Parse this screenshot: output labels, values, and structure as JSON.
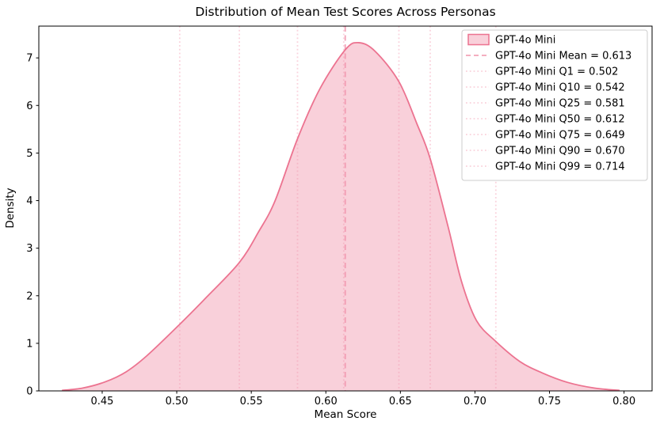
{
  "chart_data": {
    "type": "area",
    "title": "Distribution of Mean Test Scores Across Personas",
    "xlabel": "Mean Score",
    "ylabel": "Density",
    "xlim": [
      0.4075,
      0.8188
    ],
    "ylim": [
      0,
      7.668
    ],
    "grid": false,
    "legend_position": "upper right",
    "xticks": {
      "values": [
        0.45,
        0.5,
        0.55,
        0.6,
        0.65,
        0.7,
        0.75,
        0.8
      ],
      "labels": [
        "0.45",
        "0.50",
        "0.55",
        "0.60",
        "0.65",
        "0.70",
        "0.75",
        "0.80"
      ]
    },
    "yticks": {
      "values": [
        0,
        1,
        2,
        3,
        4,
        5,
        6,
        7
      ],
      "labels": [
        "0",
        "1",
        "2",
        "3",
        "4",
        "5",
        "6",
        "7"
      ]
    },
    "series": [
      {
        "name": "GPT-4o Mini",
        "type": "kde",
        "points": [
          [
            0.423,
            0.01
          ],
          [
            0.437,
            0.06
          ],
          [
            0.452,
            0.19
          ],
          [
            0.466,
            0.4
          ],
          [
            0.48,
            0.74
          ],
          [
            0.502,
            1.4
          ],
          [
            0.52,
            1.97
          ],
          [
            0.542,
            2.7
          ],
          [
            0.555,
            3.35
          ],
          [
            0.566,
            4.0
          ],
          [
            0.581,
            5.3
          ],
          [
            0.596,
            6.35
          ],
          [
            0.613,
            7.17
          ],
          [
            0.622,
            7.32
          ],
          [
            0.633,
            7.14
          ],
          [
            0.649,
            6.5
          ],
          [
            0.661,
            5.62
          ],
          [
            0.67,
            4.88
          ],
          [
            0.682,
            3.45
          ],
          [
            0.691,
            2.3
          ],
          [
            0.701,
            1.48
          ],
          [
            0.714,
            1.04
          ],
          [
            0.73,
            0.62
          ],
          [
            0.745,
            0.38
          ],
          [
            0.762,
            0.18
          ],
          [
            0.78,
            0.06
          ],
          [
            0.797,
            0.01
          ]
        ]
      }
    ],
    "vlines": [
      {
        "key": "mean",
        "label": "GPT-4o Mini Mean = 0.613",
        "x": 0.613,
        "style": "dashed"
      },
      {
        "key": "q1",
        "label": "GPT-4o Mini Q1 = 0.502",
        "x": 0.502,
        "style": "dotted"
      },
      {
        "key": "q10",
        "label": "GPT-4o Mini Q10 = 0.542",
        "x": 0.542,
        "style": "dotted"
      },
      {
        "key": "q25",
        "label": "GPT-4o Mini Q25 = 0.581",
        "x": 0.581,
        "style": "dotted"
      },
      {
        "key": "q50",
        "label": "GPT-4o Mini Q50 = 0.612",
        "x": 0.612,
        "style": "dotted"
      },
      {
        "key": "q75",
        "label": "GPT-4o Mini Q75 = 0.649",
        "x": 0.649,
        "style": "dotted"
      },
      {
        "key": "q90",
        "label": "GPT-4o Mini Q90 = 0.670",
        "x": 0.67,
        "style": "dotted"
      },
      {
        "key": "q99",
        "label": "GPT-4o Mini Q99 = 0.714",
        "x": 0.714,
        "style": "dotted"
      }
    ],
    "legend": [
      {
        "key": "series",
        "swatch": "patch",
        "label": "GPT-4o Mini"
      },
      {
        "key": "mean",
        "swatch": "dashed",
        "label": "GPT-4o Mini Mean = 0.613"
      },
      {
        "key": "q1",
        "swatch": "dotted",
        "label": "GPT-4o Mini Q1 = 0.502"
      },
      {
        "key": "q10",
        "swatch": "dotted",
        "label": "GPT-4o Mini Q10 = 0.542"
      },
      {
        "key": "q25",
        "swatch": "dotted",
        "label": "GPT-4o Mini Q25 = 0.581"
      },
      {
        "key": "q50",
        "swatch": "dotted",
        "label": "GPT-4o Mini Q50 = 0.612"
      },
      {
        "key": "q75",
        "swatch": "dotted",
        "label": "GPT-4o Mini Q75 = 0.649"
      },
      {
        "key": "q90",
        "swatch": "dotted",
        "label": "GPT-4o Mini Q90 = 0.670"
      },
      {
        "key": "q99",
        "swatch": "dotted",
        "label": "GPT-4o Mini Q99 = 0.714"
      }
    ]
  },
  "colors": {
    "curve_line": "#ec7390",
    "curve_fill": "rgba(242,150,172,0.45)",
    "mean_line": "#f2a3b8",
    "quantile_line": "#fad2dc",
    "spine": "#000000",
    "legend_border": "#cccccc",
    "legend_bg": "#ffffff"
  }
}
